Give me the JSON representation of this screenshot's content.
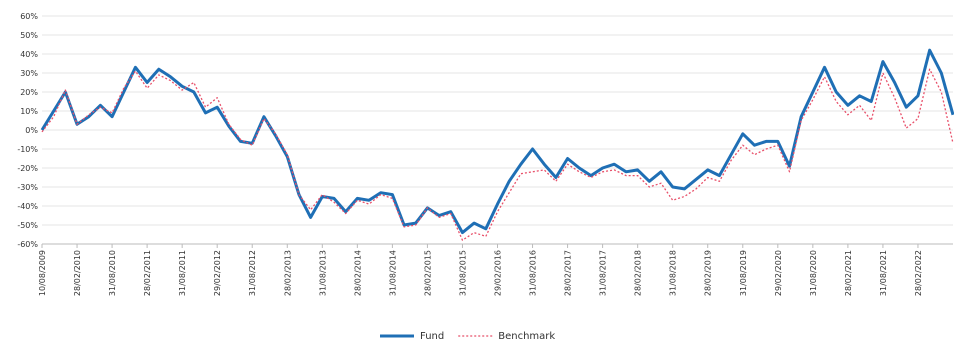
{
  "chart_data": {
    "type": "line",
    "categories": [
      "10/08/2009",
      null,
      null,
      "28/02/2010",
      null,
      null,
      "31/08/2010",
      null,
      null,
      "28/02/2011",
      null,
      null,
      "31/08/2011",
      null,
      null,
      "29/02/2012",
      null,
      null,
      "31/08/2012",
      null,
      null,
      "28/02/2013",
      null,
      null,
      "31/08/2013",
      null,
      null,
      "28/02/2014",
      null,
      null,
      "31/08/2014",
      null,
      null,
      "28/02/2015",
      null,
      null,
      "31/08/2015",
      null,
      null,
      "29/02/2016",
      null,
      null,
      "31/08/2016",
      null,
      null,
      "28/02/2017",
      null,
      null,
      "31/08/2017",
      null,
      null,
      "28/02/2018",
      null,
      null,
      "31/08/2018",
      null,
      null,
      "28/02/2019",
      null,
      null,
      "31/08/2019",
      null,
      null,
      "29/02/2020",
      null,
      null,
      "31/08/2020",
      null,
      null,
      "28/02/2021",
      null,
      null,
      "31/08/2021",
      null,
      null,
      "28/02/2022",
      null,
      null,
      null
    ],
    "series": [
      {
        "name": "Fund",
        "color": "#1f6fb5",
        "values": [
          0,
          10,
          20,
          3,
          7,
          13,
          7,
          20,
          33,
          25,
          32,
          28,
          23,
          20,
          9,
          12,
          2,
          -6,
          -7,
          7,
          -3,
          -14,
          -34,
          -46,
          -35,
          -36,
          -43,
          -36,
          -37,
          -33,
          -34,
          -50,
          -49,
          -41,
          -45,
          -43,
          -54,
          -49,
          -52,
          -39,
          -27,
          -18,
          -10,
          -18,
          -25,
          -15,
          -20,
          -24,
          -20,
          -18,
          -22,
          -21,
          -27,
          -22,
          -30,
          -31,
          -26,
          -21,
          -24,
          -13,
          -2,
          -8,
          -6,
          -6,
          -19,
          7,
          20,
          33,
          20,
          13,
          18,
          15,
          36,
          25,
          12,
          18,
          42,
          30,
          8
        ]
      },
      {
        "name": "Benchmark",
        "color": "#e8506a",
        "values": [
          -1,
          7,
          21,
          3,
          8,
          12,
          9,
          22,
          31,
          22,
          29,
          26,
          21,
          25,
          12,
          17,
          3,
          -5,
          -8,
          6,
          -2,
          -13,
          -34,
          -42,
          -34,
          -38,
          -44,
          -37,
          -39,
          -34,
          -36,
          -51,
          -50,
          -41,
          -46,
          -44,
          -58,
          -54,
          -56,
          -43,
          -33,
          -23,
          -22,
          -21,
          -27,
          -18,
          -22,
          -25,
          -22,
          -21,
          -24,
          -24,
          -30,
          -28,
          -37,
          -35,
          -31,
          -25,
          -27,
          -16,
          -8,
          -13,
          -10,
          -8,
          -22,
          5,
          16,
          28,
          15,
          8,
          13,
          5,
          30,
          17,
          1,
          6,
          32,
          20,
          -7
        ]
      }
    ],
    "ylim": [
      -60,
      60
    ],
    "yticks": [
      {
        "value": -60,
        "label": "-60%"
      },
      {
        "value": -50,
        "label": "-50%"
      },
      {
        "value": -40,
        "label": "-40%"
      },
      {
        "value": -30,
        "label": "-30%"
      },
      {
        "value": -20,
        "label": "-20%"
      },
      {
        "value": -10,
        "label": "-10%"
      },
      {
        "value": 0,
        "label": "0%"
      },
      {
        "value": 10,
        "label": "10%"
      },
      {
        "value": 20,
        "label": "20%"
      },
      {
        "value": 30,
        "label": "30%"
      },
      {
        "value": 40,
        "label": "40%"
      },
      {
        "value": 50,
        "label": "50%"
      },
      {
        "value": 60,
        "label": "60%"
      }
    ],
    "grid": true,
    "legend": "bottom"
  }
}
